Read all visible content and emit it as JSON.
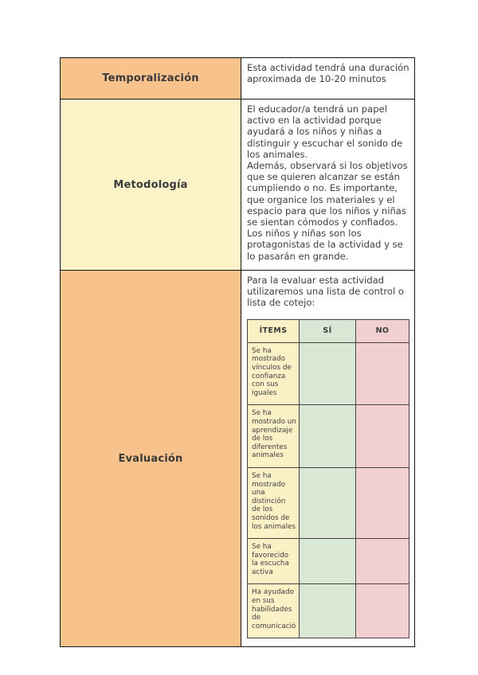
{
  "table": {
    "rows": [
      {
        "label": "Temporalización",
        "content": "Esta actividad tendrá una duración aproximada de 10-20 minutos"
      },
      {
        "label": "Metodología",
        "content": "El educador/a tendrá un papel activo en la actividad porque ayudará a los niños y niñas a distinguir y escuchar el sonido de los animales.\nAdemás, observará si los objetivos que se quieren alcanzar se están cumpliendo o no. Es importante, que organice los materiales y el espacio para que los niños y niñas se sientan cómodos y confiados.\nLos niños y niñas son los protagonistas de la actividad y se lo pasarán en grande."
      },
      {
        "label": "Evaluación",
        "content": "Para la evaluar esta actividad utilizaremos una lista de control o lista de cotejo:"
      }
    ]
  },
  "checklist": {
    "headers": {
      "items": "ÍTEMS",
      "yes": "SÍ",
      "no": "NO"
    },
    "rows": [
      {
        "item": "Se ha mostrado vínculos de confianza con sus iguales",
        "yes": "",
        "no": ""
      },
      {
        "item": "Se ha mostrado un aprendizaje de los diferentes animales",
        "yes": "",
        "no": ""
      },
      {
        "item": "Se ha mostrado una distinción de los sonidos de los animales",
        "yes": "",
        "no": ""
      },
      {
        "item": "Se ha favorecido la escucha activa",
        "yes": "",
        "no": ""
      },
      {
        "item": "Ha ayudado en sus habilidades de comunicació",
        "yes": "",
        "no": ""
      }
    ]
  },
  "colors": {
    "label_orange": "#f8c28c",
    "label_cream": "#fdf3c8",
    "checklist_items_bg": "#fbf0c6",
    "checklist_yes_bg": "#d9e8d4",
    "checklist_no_bg": "#f2d0d2",
    "border_dark": "#161616"
  }
}
